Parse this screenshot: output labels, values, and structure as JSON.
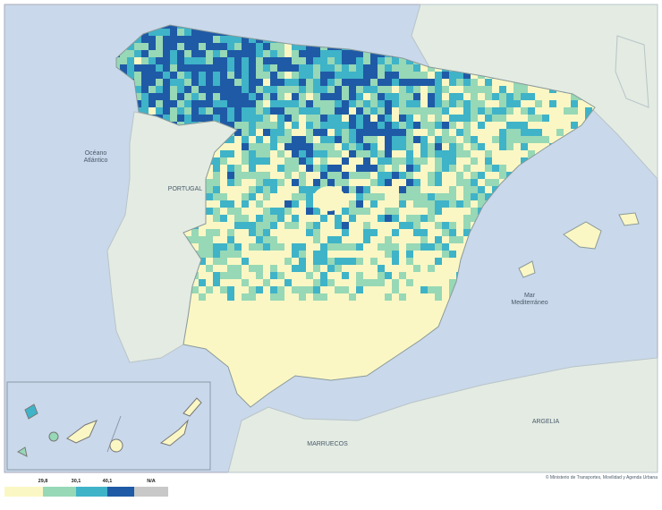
{
  "map": {
    "labels": {
      "ocean": [
        "Océano",
        "Atlántico"
      ],
      "portugal": "PORTUGAL",
      "sea": [
        "Mar",
        "Mediterráneo"
      ],
      "algeria": "ARGELIA",
      "morocco": "MARRUECOS"
    },
    "source": "© Ministerio de Transportes, Movilidad y Agenda Urbana",
    "legend": {
      "colors": [
        "#fbf7c4",
        "#97d8b6",
        "#3fb3c8",
        "#1f5aa6"
      ],
      "breaks": [
        "29,8",
        "30,1",
        "40,1"
      ],
      "na_label": "N/A",
      "na_color": "#c8c8c8"
    }
  }
}
